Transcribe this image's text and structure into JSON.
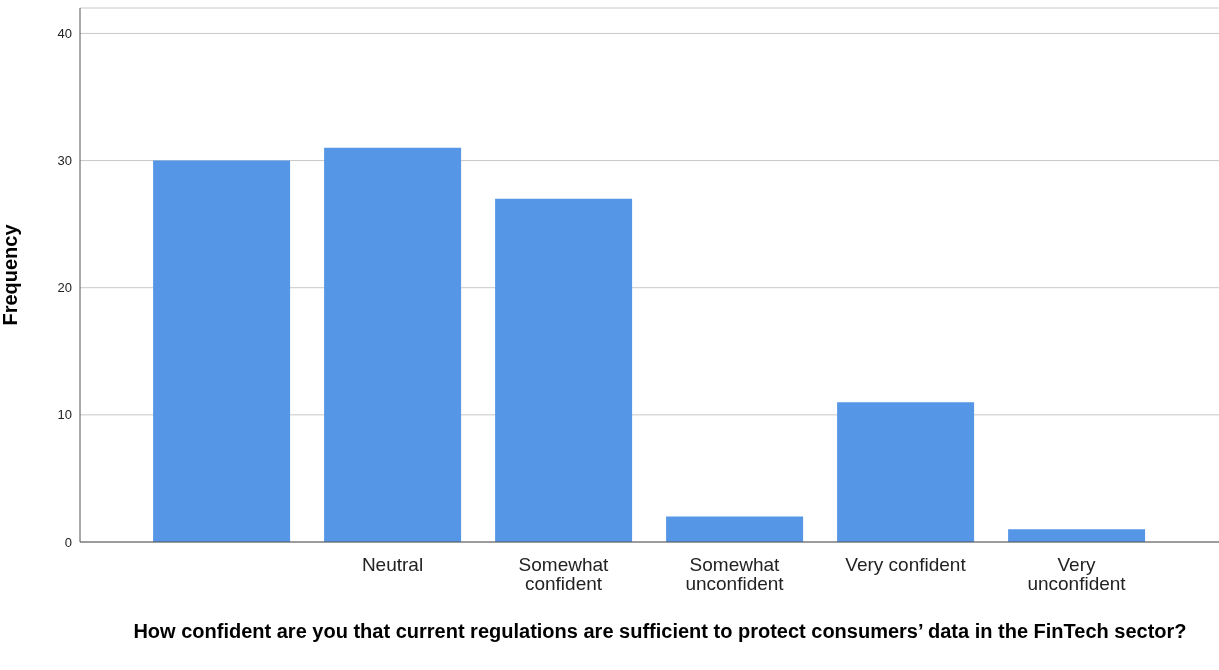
{
  "chart_data": {
    "type": "bar",
    "xlabel": "How confident are you that current regulations are sufficient to protect consumers’ data in the FinTech sector?",
    "ylabel": "Frequency",
    "categories": [
      null,
      "Neutral",
      "Somewhat confident",
      "Somewhat unconfident",
      "Very confident",
      "Very unconfident"
    ],
    "values": [
      30,
      31,
      27,
      2,
      11,
      1
    ],
    "color": "#5596e6",
    "ylim": [
      0,
      42
    ],
    "yticks": [
      0,
      10,
      20,
      30,
      40
    ],
    "grid": "y",
    "legend": false
  }
}
